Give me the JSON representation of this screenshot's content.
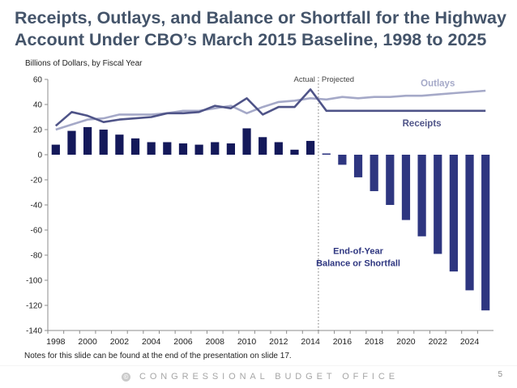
{
  "title": "Receipts, Outlays, and Balance or Shortfall for the Highway Account Under CBO’s March 2015 Baseline, 1998 to 2025",
  "subtitle": "Billions of Dollars, by Fiscal Year",
  "notes": "Notes for this slide can be found at the end of the presentation on slide 17.",
  "footer": {
    "org": "CONGRESSIONAL BUDGET OFFICE",
    "page_number": "5",
    "logo_glyph": "©"
  },
  "chart_data": {
    "type": "bar",
    "title": "Receipts, Outlays, and Balance or Shortfall for the Highway Account Under CBO’s March 2015 Baseline, 1998 to 2025",
    "ylabel": "Billions of Dollars, by Fiscal Year",
    "ylim": [
      -140,
      60
    ],
    "yticks": [
      60,
      40,
      20,
      0,
      -20,
      -40,
      -60,
      -80,
      -100,
      -120,
      -140
    ],
    "xticks": [
      1998,
      2000,
      2002,
      2004,
      2006,
      2008,
      2010,
      2012,
      2014,
      2016,
      2018,
      2020,
      2022,
      2024
    ],
    "x": [
      1998,
      1999,
      2000,
      2001,
      2002,
      2003,
      2004,
      2005,
      2006,
      2007,
      2008,
      2009,
      2010,
      2011,
      2012,
      2013,
      2014,
      2015,
      2016,
      2017,
      2018,
      2019,
      2020,
      2021,
      2022,
      2023,
      2024,
      2025
    ],
    "divider": {
      "after_year": 2014,
      "left_label": "Actual",
      "right_label": "Projected"
    },
    "series": [
      {
        "name": "End-of-Year Balance or Shortfall",
        "kind": "bar",
        "label_line1": "End-of-Year",
        "label_line2": "Balance or Shortfall",
        "actual_color": "#14195a",
        "projected_color": "#2e3680",
        "values": [
          8,
          19,
          22,
          20,
          16,
          13,
          10,
          10,
          9,
          8,
          10,
          9,
          21,
          14,
          10,
          4,
          11,
          1,
          -8,
          -18,
          -29,
          -40,
          -52,
          -65,
          -79,
          -93,
          -108,
          -124
        ]
      },
      {
        "name": "Outlays",
        "kind": "line",
        "color": "#a5a9c8",
        "values": [
          20,
          24,
          28,
          29,
          32,
          32,
          32,
          33,
          35,
          35,
          37,
          39,
          33,
          38,
          42,
          43,
          45,
          44,
          46,
          45,
          46,
          46,
          47,
          47,
          48,
          49,
          50,
          51
        ]
      },
      {
        "name": "Receipts",
        "kind": "line",
        "color": "#4f5488",
        "values": [
          23,
          34,
          31,
          26,
          28,
          29,
          30,
          33,
          33,
          34,
          39,
          37,
          45,
          32,
          38,
          38,
          52,
          35,
          35,
          35,
          35,
          35,
          35,
          35,
          35,
          35,
          35,
          35
        ]
      }
    ]
  }
}
